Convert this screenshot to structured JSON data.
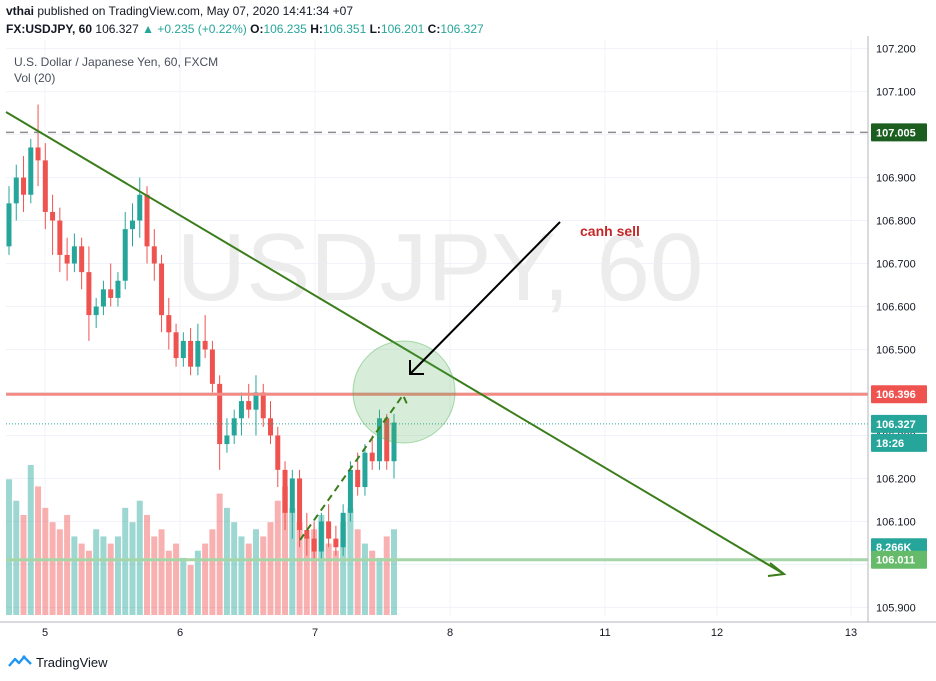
{
  "header": {
    "user": "vthai",
    "published_text": "published on TradingView.com, May 07, 2020 14:41:34 +07",
    "symbol": "FX:USDJPY, 60",
    "last": "106.327",
    "change_arrow": "▲",
    "change": "+0.235 (+0.22%)",
    "o_label": "O:",
    "o_value": "106.235",
    "h_label": "H:",
    "h_value": "106.351",
    "l_label": "L:",
    "l_value": "106.201",
    "c_label": "C:",
    "c_value": "106.327"
  },
  "legend": {
    "instrument": "U.S. Dollar / Japanese Yen, 60, FXCM",
    "volume": "Vol (20)"
  },
  "watermark": "USDJPY, 60",
  "footer": {
    "brand": "TradingView",
    "icon": "tradingview-logo-icon"
  },
  "colors": {
    "up": "#26a69a",
    "down": "#ef5350",
    "trendline": "#3a7d1a",
    "resistance": "#f28b82",
    "support": "#a5d6a7",
    "annotation": "#c62828",
    "price_tag_current": "#26a69a",
    "price_tag_res": "#ef5350",
    "price_tag_sup": "#66bb6a",
    "price_tag_dash": "#1b5e20"
  },
  "chart_data": {
    "type": "candlestick",
    "timeframe": "60",
    "x_ticks": [
      "5",
      "6",
      "7",
      "8",
      "11",
      "12",
      "13"
    ],
    "y_ticks": [
      "107.200",
      "107.100",
      "107.000",
      "106.900",
      "106.800",
      "106.700",
      "106.600",
      "106.500",
      "106.400",
      "106.300",
      "106.200",
      "106.100",
      "106.000",
      "105.900"
    ],
    "ylim": [
      105.88,
      107.22
    ],
    "levels": {
      "dashed_level": "107.005",
      "resistance": "106.396",
      "current": "106.327",
      "countdown": "18:26",
      "support": "106.011",
      "volume_label": "8.266K"
    },
    "annotation": "canh sell",
    "candles": [
      {
        "o": 106.74,
        "h": 106.88,
        "l": 106.72,
        "c": 106.84
      },
      {
        "o": 106.84,
        "h": 106.93,
        "l": 106.8,
        "c": 106.9
      },
      {
        "o": 106.9,
        "h": 106.95,
        "l": 106.82,
        "c": 106.86
      },
      {
        "o": 106.86,
        "h": 106.99,
        "l": 106.84,
        "c": 106.97
      },
      {
        "o": 106.97,
        "h": 107.07,
        "l": 106.88,
        "c": 106.94
      },
      {
        "o": 106.94,
        "h": 106.98,
        "l": 106.78,
        "c": 106.82
      },
      {
        "o": 106.82,
        "h": 106.86,
        "l": 106.72,
        "c": 106.8
      },
      {
        "o": 106.8,
        "h": 106.83,
        "l": 106.68,
        "c": 106.72
      },
      {
        "o": 106.72,
        "h": 106.76,
        "l": 106.66,
        "c": 106.7
      },
      {
        "o": 106.7,
        "h": 106.77,
        "l": 106.68,
        "c": 106.74
      },
      {
        "o": 106.74,
        "h": 106.76,
        "l": 106.64,
        "c": 106.68
      },
      {
        "o": 106.68,
        "h": 106.74,
        "l": 106.52,
        "c": 106.58
      },
      {
        "o": 106.58,
        "h": 106.62,
        "l": 106.55,
        "c": 106.6
      },
      {
        "o": 106.6,
        "h": 106.66,
        "l": 106.58,
        "c": 106.64
      },
      {
        "o": 106.64,
        "h": 106.7,
        "l": 106.6,
        "c": 106.62
      },
      {
        "o": 106.62,
        "h": 106.68,
        "l": 106.6,
        "c": 106.66
      },
      {
        "o": 106.66,
        "h": 106.82,
        "l": 106.64,
        "c": 106.78
      },
      {
        "o": 106.78,
        "h": 106.84,
        "l": 106.74,
        "c": 106.8
      },
      {
        "o": 106.8,
        "h": 106.9,
        "l": 106.76,
        "c": 106.86
      },
      {
        "o": 106.86,
        "h": 106.88,
        "l": 106.7,
        "c": 106.74
      },
      {
        "o": 106.74,
        "h": 106.78,
        "l": 106.66,
        "c": 106.7
      },
      {
        "o": 106.7,
        "h": 106.72,
        "l": 106.54,
        "c": 106.58
      },
      {
        "o": 106.58,
        "h": 106.62,
        "l": 106.5,
        "c": 106.54
      },
      {
        "o": 106.54,
        "h": 106.56,
        "l": 106.46,
        "c": 106.48
      },
      {
        "o": 106.48,
        "h": 106.54,
        "l": 106.46,
        "c": 106.52
      },
      {
        "o": 106.52,
        "h": 106.55,
        "l": 106.44,
        "c": 106.46
      },
      {
        "o": 106.46,
        "h": 106.56,
        "l": 106.44,
        "c": 106.52
      },
      {
        "o": 106.52,
        "h": 106.58,
        "l": 106.48,
        "c": 106.5
      },
      {
        "o": 106.5,
        "h": 106.52,
        "l": 106.4,
        "c": 106.42
      },
      {
        "o": 106.42,
        "h": 106.44,
        "l": 106.22,
        "c": 106.28
      },
      {
        "o": 106.28,
        "h": 106.34,
        "l": 106.26,
        "c": 106.3
      },
      {
        "o": 106.3,
        "h": 106.36,
        "l": 106.28,
        "c": 106.34
      },
      {
        "o": 106.34,
        "h": 106.4,
        "l": 106.3,
        "c": 106.38
      },
      {
        "o": 106.38,
        "h": 106.42,
        "l": 106.34,
        "c": 106.36
      },
      {
        "o": 106.36,
        "h": 106.44,
        "l": 106.3,
        "c": 106.4
      },
      {
        "o": 106.4,
        "h": 106.42,
        "l": 106.32,
        "c": 106.34
      },
      {
        "o": 106.34,
        "h": 106.38,
        "l": 106.28,
        "c": 106.3
      },
      {
        "o": 106.3,
        "h": 106.32,
        "l": 106.18,
        "c": 106.22
      },
      {
        "o": 106.22,
        "h": 106.24,
        "l": 106.08,
        "c": 106.12
      },
      {
        "o": 106.12,
        "h": 106.22,
        "l": 106.06,
        "c": 106.2
      },
      {
        "o": 106.2,
        "h": 106.22,
        "l": 106.04,
        "c": 106.08
      },
      {
        "o": 106.08,
        "h": 106.12,
        "l": 106.02,
        "c": 106.06
      },
      {
        "o": 106.06,
        "h": 106.1,
        "l": 106.01,
        "c": 106.03
      },
      {
        "o": 106.03,
        "h": 106.12,
        "l": 106.01,
        "c": 106.1
      },
      {
        "o": 106.1,
        "h": 106.14,
        "l": 106.04,
        "c": 106.06
      },
      {
        "o": 106.06,
        "h": 106.09,
        "l": 106.02,
        "c": 106.04
      },
      {
        "o": 106.04,
        "h": 106.14,
        "l": 106.02,
        "c": 106.12
      },
      {
        "o": 106.12,
        "h": 106.24,
        "l": 106.1,
        "c": 106.22
      },
      {
        "o": 106.22,
        "h": 106.26,
        "l": 106.16,
        "c": 106.18
      },
      {
        "o": 106.18,
        "h": 106.28,
        "l": 106.16,
        "c": 106.26
      },
      {
        "o": 106.26,
        "h": 106.3,
        "l": 106.22,
        "c": 106.24
      },
      {
        "o": 106.24,
        "h": 106.36,
        "l": 106.22,
        "c": 106.34
      },
      {
        "o": 106.34,
        "h": 106.35,
        "l": 106.22,
        "c": 106.24
      },
      {
        "o": 106.24,
        "h": 106.35,
        "l": 106.2,
        "c": 106.33
      }
    ],
    "volume": [
      38,
      32,
      28,
      42,
      36,
      30,
      26,
      24,
      28,
      22,
      20,
      18,
      24,
      22,
      20,
      22,
      30,
      26,
      32,
      28,
      22,
      24,
      18,
      20,
      16,
      14,
      18,
      20,
      24,
      34,
      30,
      26,
      22,
      20,
      24,
      22,
      26,
      32,
      36,
      30,
      26,
      22,
      24,
      28,
      20,
      18,
      26,
      30,
      24,
      20,
      18,
      16,
      22,
      24
    ]
  }
}
